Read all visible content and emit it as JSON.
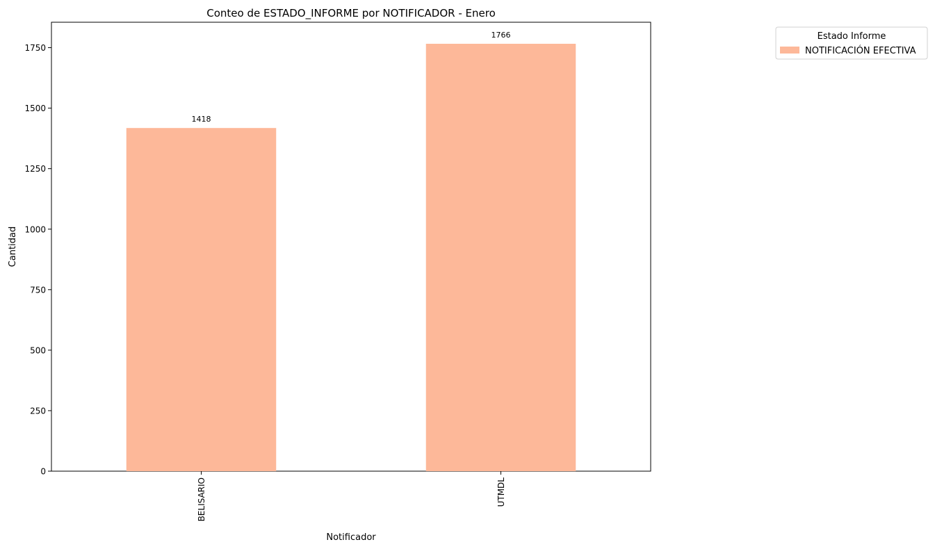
{
  "chart_data": {
    "type": "bar",
    "title": "Conteo de ESTADO_INFORME por NOTIFICADOR - Enero",
    "xlabel": "Notificador",
    "ylabel": "Cantidad",
    "categories": [
      "BELISARIO",
      "UTMDL"
    ],
    "series": [
      {
        "name": "NOTIFICACIÓN EFECTIVA",
        "values": [
          1418,
          1766
        ],
        "color": "#fdb899"
      }
    ],
    "data_labels": [
      "1418",
      "1766"
    ],
    "ylim": [
      0,
      1855
    ],
    "yticks": [
      0,
      250,
      500,
      750,
      1000,
      1250,
      1500,
      1750
    ],
    "grid": false,
    "legend": {
      "title": "Estado Informe",
      "placement": "outside-top-right"
    }
  }
}
